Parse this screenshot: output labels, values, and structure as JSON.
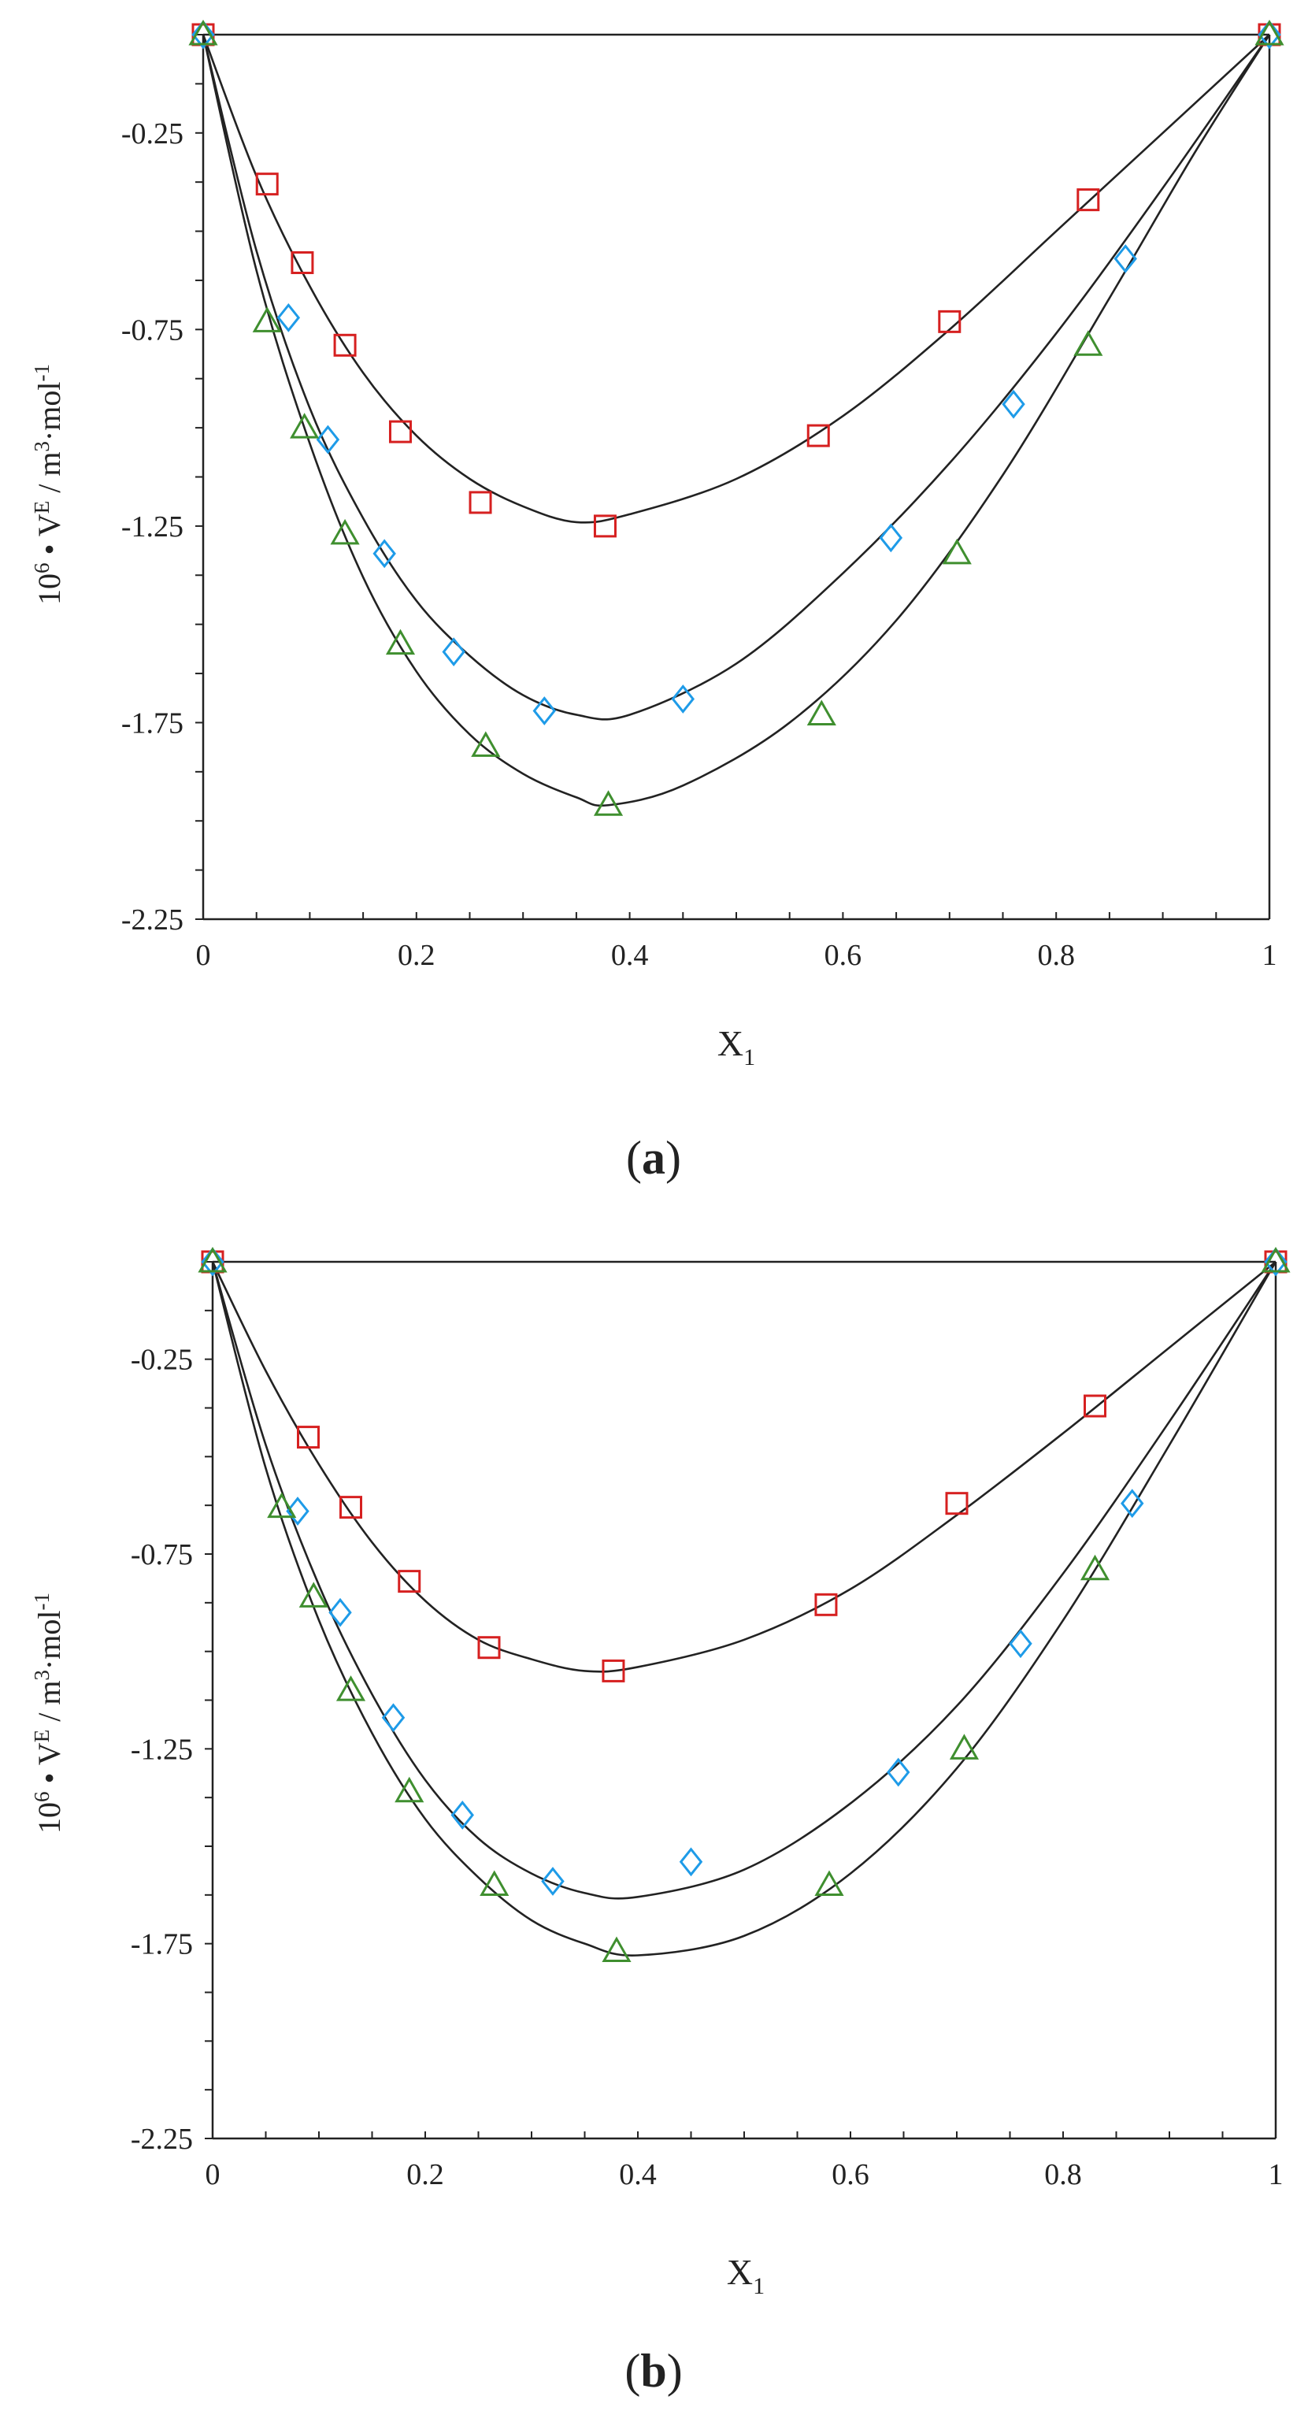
{
  "figure_labels": {
    "a": {
      "open": "(",
      "letter": "a",
      "close": ")"
    },
    "b": {
      "open": "(",
      "letter": "b",
      "close": ")"
    }
  },
  "axis_titles": {
    "x": {
      "main": "X",
      "sub": "1"
    },
    "y": {
      "p1": "10",
      "s1": "6",
      "p2": " • V",
      "s2": "E",
      "p3": " / m",
      "s3": "3",
      "p4": "·mol",
      "s4": "-1"
    }
  },
  "colors": {
    "square": "#d62020",
    "diamond": "#1e9be8",
    "triangle": "#3f8f2f",
    "curve": "#222222",
    "axis": "#222222"
  },
  "chart_data": [
    {
      "panel": "a",
      "type": "scatter",
      "xlim": [
        0,
        1
      ],
      "ylim": [
        -2.25,
        0
      ],
      "x_ticks": [
        0,
        0.2,
        0.4,
        0.6,
        0.8,
        1
      ],
      "x_tick_labels": [
        "0",
        "0.2",
        "0.4",
        "0.6",
        "0.8",
        "1"
      ],
      "y_ticks": [
        -0.25,
        -0.75,
        -1.25,
        -1.75,
        -2.25
      ],
      "y_tick_labels": [
        "-0.25",
        "-0.75",
        "-1.25",
        "-1.75",
        "-2.25"
      ],
      "series": [
        {
          "marker": "square",
          "points": [
            [
              0,
              0
            ],
            [
              0.06,
              -0.38
            ],
            [
              0.093,
              -0.58
            ],
            [
              0.133,
              -0.79
            ],
            [
              0.185,
              -1.01
            ],
            [
              0.26,
              -1.19
            ],
            [
              0.377,
              -1.25
            ],
            [
              0.577,
              -1.02
            ],
            [
              0.7,
              -0.73
            ],
            [
              0.83,
              -0.42
            ],
            [
              1,
              0
            ]
          ],
          "fit": [
            [
              0,
              0
            ],
            [
              0.05,
              -0.36
            ],
            [
              0.1,
              -0.64
            ],
            [
              0.15,
              -0.86
            ],
            [
              0.2,
              -1.02
            ],
            [
              0.25,
              -1.13
            ],
            [
              0.3,
              -1.2
            ],
            [
              0.35,
              -1.24
            ],
            [
              0.4,
              -1.22
            ],
            [
              0.5,
              -1.13
            ],
            [
              0.6,
              -0.97
            ],
            [
              0.7,
              -0.75
            ],
            [
              0.8,
              -0.5
            ],
            [
              0.9,
              -0.25
            ],
            [
              1,
              0
            ]
          ]
        },
        {
          "marker": "diamond",
          "points": [
            [
              0,
              0
            ],
            [
              0.08,
              -0.72
            ],
            [
              0.117,
              -1.03
            ],
            [
              0.17,
              -1.32
            ],
            [
              0.235,
              -1.57
            ],
            [
              0.32,
              -1.72
            ],
            [
              0.45,
              -1.69
            ],
            [
              0.645,
              -1.28
            ],
            [
              0.76,
              -0.94
            ],
            [
              0.865,
              -0.57
            ],
            [
              1,
              0
            ]
          ],
          "fit": [
            [
              0,
              0
            ],
            [
              0.05,
              -0.55
            ],
            [
              0.1,
              -0.95
            ],
            [
              0.15,
              -1.23
            ],
            [
              0.2,
              -1.44
            ],
            [
              0.25,
              -1.58
            ],
            [
              0.3,
              -1.68
            ],
            [
              0.35,
              -1.73
            ],
            [
              0.4,
              -1.73
            ],
            [
              0.5,
              -1.6
            ],
            [
              0.6,
              -1.37
            ],
            [
              0.7,
              -1.09
            ],
            [
              0.8,
              -0.76
            ],
            [
              0.9,
              -0.39
            ],
            [
              1,
              0
            ]
          ]
        },
        {
          "marker": "triangle",
          "points": [
            [
              0,
              0
            ],
            [
              0.06,
              -0.73
            ],
            [
              0.095,
              -1.0
            ],
            [
              0.133,
              -1.27
            ],
            [
              0.185,
              -1.55
            ],
            [
              0.265,
              -1.81
            ],
            [
              0.38,
              -1.96
            ],
            [
              0.58,
              -1.73
            ],
            [
              0.707,
              -1.32
            ],
            [
              0.83,
              -0.79
            ],
            [
              1,
              0
            ]
          ],
          "fit": [
            [
              0,
              0
            ],
            [
              0.05,
              -0.6
            ],
            [
              0.1,
              -1.04
            ],
            [
              0.15,
              -1.38
            ],
            [
              0.2,
              -1.62
            ],
            [
              0.25,
              -1.78
            ],
            [
              0.3,
              -1.88
            ],
            [
              0.35,
              -1.94
            ],
            [
              0.38,
              -1.96
            ],
            [
              0.45,
              -1.91
            ],
            [
              0.55,
              -1.75
            ],
            [
              0.65,
              -1.49
            ],
            [
              0.75,
              -1.12
            ],
            [
              0.85,
              -0.67
            ],
            [
              0.93,
              -0.3
            ],
            [
              1,
              0
            ]
          ]
        }
      ]
    },
    {
      "panel": "b",
      "type": "scatter",
      "xlim": [
        0,
        1
      ],
      "ylim": [
        -2.25,
        0
      ],
      "x_ticks": [
        0,
        0.2,
        0.4,
        0.6,
        0.8,
        1
      ],
      "x_tick_labels": [
        "0",
        "0.2",
        "0.4",
        "0.6",
        "0.8",
        "1"
      ],
      "y_ticks": [
        -0.25,
        -0.75,
        -1.25,
        -1.75,
        -2.25
      ],
      "y_tick_labels": [
        "-0.25",
        "-0.75",
        "-1.25",
        "-1.75",
        "-2.25"
      ],
      "series": [
        {
          "marker": "square",
          "points": [
            [
              0,
              0
            ],
            [
              0.09,
              -0.45
            ],
            [
              0.13,
              -0.63
            ],
            [
              0.185,
              -0.82
            ],
            [
              0.26,
              -0.99
            ],
            [
              0.377,
              -1.05
            ],
            [
              0.577,
              -0.88
            ],
            [
              0.7,
              -0.62
            ],
            [
              0.83,
              -0.37
            ],
            [
              1,
              0
            ]
          ],
          "fit": [
            [
              0,
              0
            ],
            [
              0.05,
              -0.28
            ],
            [
              0.1,
              -0.52
            ],
            [
              0.15,
              -0.72
            ],
            [
              0.2,
              -0.87
            ],
            [
              0.25,
              -0.97
            ],
            [
              0.3,
              -1.02
            ],
            [
              0.35,
              -1.05
            ],
            [
              0.4,
              -1.04
            ],
            [
              0.5,
              -0.97
            ],
            [
              0.6,
              -0.84
            ],
            [
              0.7,
              -0.65
            ],
            [
              0.8,
              -0.44
            ],
            [
              0.9,
              -0.22
            ],
            [
              1,
              0
            ]
          ]
        },
        {
          "marker": "diamond",
          "points": [
            [
              0,
              0
            ],
            [
              0.08,
              -0.64
            ],
            [
              0.12,
              -0.9
            ],
            [
              0.17,
              -1.17
            ],
            [
              0.235,
              -1.42
            ],
            [
              0.32,
              -1.59
            ],
            [
              0.45,
              -1.54
            ],
            [
              0.645,
              -1.31
            ],
            [
              0.76,
              -0.98
            ],
            [
              0.865,
              -0.62
            ],
            [
              1,
              0
            ]
          ],
          "fit": [
            [
              0,
              0
            ],
            [
              0.05,
              -0.47
            ],
            [
              0.1,
              -0.83
            ],
            [
              0.15,
              -1.11
            ],
            [
              0.2,
              -1.33
            ],
            [
              0.25,
              -1.48
            ],
            [
              0.3,
              -1.57
            ],
            [
              0.35,
              -1.62
            ],
            [
              0.4,
              -1.63
            ],
            [
              0.5,
              -1.56
            ],
            [
              0.6,
              -1.39
            ],
            [
              0.7,
              -1.14
            ],
            [
              0.8,
              -0.8
            ],
            [
              0.9,
              -0.41
            ],
            [
              1,
              0
            ]
          ]
        },
        {
          "marker": "triangle",
          "points": [
            [
              0,
              0
            ],
            [
              0.065,
              -0.63
            ],
            [
              0.095,
              -0.86
            ],
            [
              0.13,
              -1.1
            ],
            [
              0.185,
              -1.36
            ],
            [
              0.265,
              -1.6
            ],
            [
              0.38,
              -1.77
            ],
            [
              0.58,
              -1.6
            ],
            [
              0.707,
              -1.25
            ],
            [
              0.83,
              -0.79
            ],
            [
              1,
              0
            ]
          ],
          "fit": [
            [
              0,
              0
            ],
            [
              0.05,
              -0.53
            ],
            [
              0.1,
              -0.92
            ],
            [
              0.15,
              -1.21
            ],
            [
              0.2,
              -1.43
            ],
            [
              0.25,
              -1.58
            ],
            [
              0.3,
              -1.69
            ],
            [
              0.35,
              -1.75
            ],
            [
              0.4,
              -1.78
            ],
            [
              0.5,
              -1.73
            ],
            [
              0.6,
              -1.57
            ],
            [
              0.7,
              -1.3
            ],
            [
              0.8,
              -0.92
            ],
            [
              0.9,
              -0.47
            ],
            [
              1,
              0
            ]
          ]
        }
      ]
    }
  ]
}
